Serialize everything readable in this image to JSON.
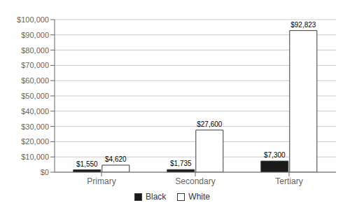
{
  "chart_data": {
    "type": "bar",
    "categories": [
      "Primary",
      "Secondary",
      "Tertiary"
    ],
    "series": [
      {
        "name": "Black",
        "color": "#1a1a1a",
        "values": [
          1550,
          1735,
          7300
        ],
        "value_labels": [
          "$1,550",
          "$1,735",
          "$7,300"
        ]
      },
      {
        "name": "White",
        "color": "#ffffff",
        "values": [
          4620,
          27600,
          92823
        ],
        "value_labels": [
          "$4,620",
          "$27,600",
          "$92,823"
        ]
      }
    ],
    "ylim": [
      0,
      100000
    ],
    "yticks": [
      {
        "value": 0,
        "label": "$0"
      },
      {
        "value": 10000,
        "label": "$10,000"
      },
      {
        "value": 20000,
        "label": "$20,000"
      },
      {
        "value": 30000,
        "label": "$30,000"
      },
      {
        "value": 40000,
        "label": "$40,000"
      },
      {
        "value": 50000,
        "label": "$50,000"
      },
      {
        "value": 60000,
        "label": "$60,000"
      },
      {
        "value": 70000,
        "label": "$70,000"
      },
      {
        "value": 80000,
        "label": "$80,000"
      },
      {
        "value": 90000,
        "label": "$90,000"
      },
      {
        "value": 100000,
        "label": "$100,000"
      }
    ],
    "grid": true,
    "legend": "bottom",
    "data_labels": true
  }
}
